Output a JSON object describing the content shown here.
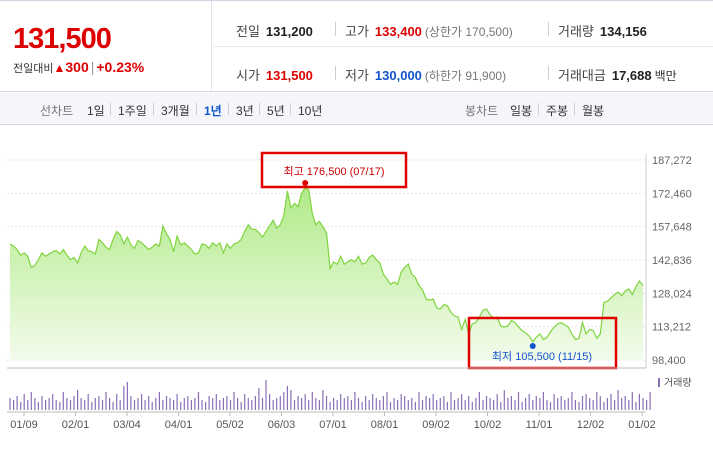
{
  "quote": {
    "price": "131,500",
    "change_label": "전일대비",
    "change_arrow": "▲",
    "change_value": "300",
    "change_percent": "+0.23%",
    "prev_close_label": "전일",
    "prev_close": "131,200",
    "high_label": "고가",
    "high": "133,400",
    "upper_limit": "(상한가 170,500)",
    "volume_label": "거래량",
    "volume": "134,156",
    "open_label": "시가",
    "open": "131,500",
    "low_label": "저가",
    "low": "130,000",
    "lower_limit": "(하한가 91,900)",
    "amount_label": "거래대금",
    "amount": "17,688",
    "amount_unit": "백만"
  },
  "tabs": {
    "line_label": "선차트",
    "line_items": [
      "1일",
      "1주일",
      "3개월",
      "1년",
      "3년",
      "5년",
      "10년"
    ],
    "line_selected": "1년",
    "candle_label": "봉차트",
    "candle_items": [
      "일봉",
      "주봉",
      "월봉"
    ]
  },
  "colors": {
    "up": "#dd0000",
    "down": "#1155cc",
    "line": "#7fd43f",
    "fill_top": "#a8e87b",
    "volume": "#8a6fb5",
    "annotation_box": "#e00000"
  },
  "chart_data": {
    "type": "area",
    "x_ticks": [
      "01/09",
      "02/01",
      "03/04",
      "04/01",
      "05/02",
      "06/03",
      "07/01",
      "08/01",
      "09/02",
      "10/02",
      "11/01",
      "12/02",
      "01/02"
    ],
    "y_ticks": [
      "187,272",
      "172,460",
      "157,648",
      "142,836",
      "128,024",
      "113,212",
      "98,400"
    ],
    "ylim": [
      98400,
      187272
    ],
    "series": [
      {
        "values": [
          150000,
          149000,
          147500,
          145000,
          146000,
          144500,
          139500,
          140500,
          143000,
          146000,
          144500,
          145500,
          146500,
          147000,
          145500,
          147500,
          145000,
          143000,
          144000,
          141500,
          146000,
          149000,
          147000,
          146500,
          145500,
          152000,
          150500,
          148500,
          147500,
          152000,
          155500,
          154000,
          150000,
          153000,
          149500,
          148000,
          151500,
          150500,
          149000,
          147500,
          148500,
          150000,
          149000,
          158000,
          154500,
          152000,
          146500,
          153500,
          149500,
          150500,
          149000,
          147500,
          145500,
          146000,
          150000,
          149500,
          148000,
          150500,
          149000,
          150500,
          146000,
          150000,
          148000,
          150000,
          150500,
          152000,
          155500,
          158500,
          156500,
          156500,
          155000,
          153000,
          155500,
          158000,
          160500,
          157000,
          158500,
          162500,
          173500,
          166000,
          168000,
          166500,
          172500,
          175000,
          174000,
          163500,
          158500,
          160000,
          157500,
          155000,
          139000,
          142000,
          141000,
          144500,
          141000,
          142000,
          143000,
          142000,
          144500,
          141000,
          141500,
          144000,
          145000,
          143000,
          141500,
          136500,
          134500,
          132000,
          133000,
          132000,
          137500,
          139500,
          141000,
          136500,
          135000,
          131500,
          129500,
          125500,
          125000,
          125500,
          121500,
          121000,
          123000,
          122500,
          119500,
          118000,
          117500,
          112000,
          116500,
          110000,
          114500,
          115000,
          117500,
          120500,
          121000,
          118500,
          117000,
          117500,
          113500,
          113000,
          113500,
          116000,
          115000,
          113000,
          111500,
          110500,
          109000,
          106500,
          108500,
          110000,
          107500,
          108500,
          111000,
          113000,
          114500,
          115000,
          114000,
          113000,
          110000,
          107500,
          108000,
          115000,
          110000,
          112000,
          111500,
          108000,
          110000,
          124000,
          124500,
          126000,
          127500,
          128500,
          127000,
          129000,
          130000,
          127500,
          131000,
          133500,
          131500
        ]
      },
      {
        "name": "거래량",
        "values": [
          6,
          5,
          7,
          4,
          8,
          5,
          9,
          6,
          4,
          7,
          5,
          6,
          8,
          5,
          4,
          9,
          6,
          5,
          7,
          10,
          6,
          5,
          8,
          4,
          6,
          7,
          5,
          9,
          6,
          4,
          8,
          5,
          12,
          14,
          7,
          5,
          6,
          8,
          5,
          7,
          4,
          6,
          9,
          5,
          7,
          6,
          5,
          8,
          4,
          6,
          7,
          5,
          6,
          9,
          5,
          4,
          7,
          6,
          8,
          5,
          6,
          7,
          5,
          9,
          6,
          4,
          8,
          6,
          5,
          7,
          11,
          6,
          15,
          8,
          5,
          6,
          7,
          9,
          12,
          10,
          5,
          7,
          6,
          8,
          5,
          9,
          6,
          5,
          10,
          7,
          4,
          6,
          5,
          8,
          6,
          7,
          5,
          9,
          6,
          4,
          7,
          5,
          8,
          6,
          5,
          7,
          9,
          4,
          6,
          5,
          8,
          7,
          5,
          6,
          4,
          9,
          5,
          7,
          6,
          8,
          5,
          6,
          7,
          4,
          9,
          5,
          6,
          8,
          5,
          7,
          4,
          6,
          9,
          5,
          7,
          6,
          5,
          8,
          4,
          10,
          6,
          7,
          5,
          9,
          4,
          6,
          8,
          5,
          7,
          6,
          9,
          5,
          4,
          8,
          6,
          7,
          5,
          6,
          9,
          5,
          4,
          7,
          8,
          6,
          5,
          9,
          7,
          4,
          6,
          8,
          5,
          10,
          6,
          7,
          5,
          9,
          4,
          8,
          6,
          5,
          9
        ]
      }
    ],
    "annotations": [
      {
        "label": "최고 176,500 (07/17)",
        "y": 176500
      },
      {
        "label": "최저 105,500 (11/15)",
        "y": 105500
      }
    ],
    "volume_legend": "거래량"
  }
}
